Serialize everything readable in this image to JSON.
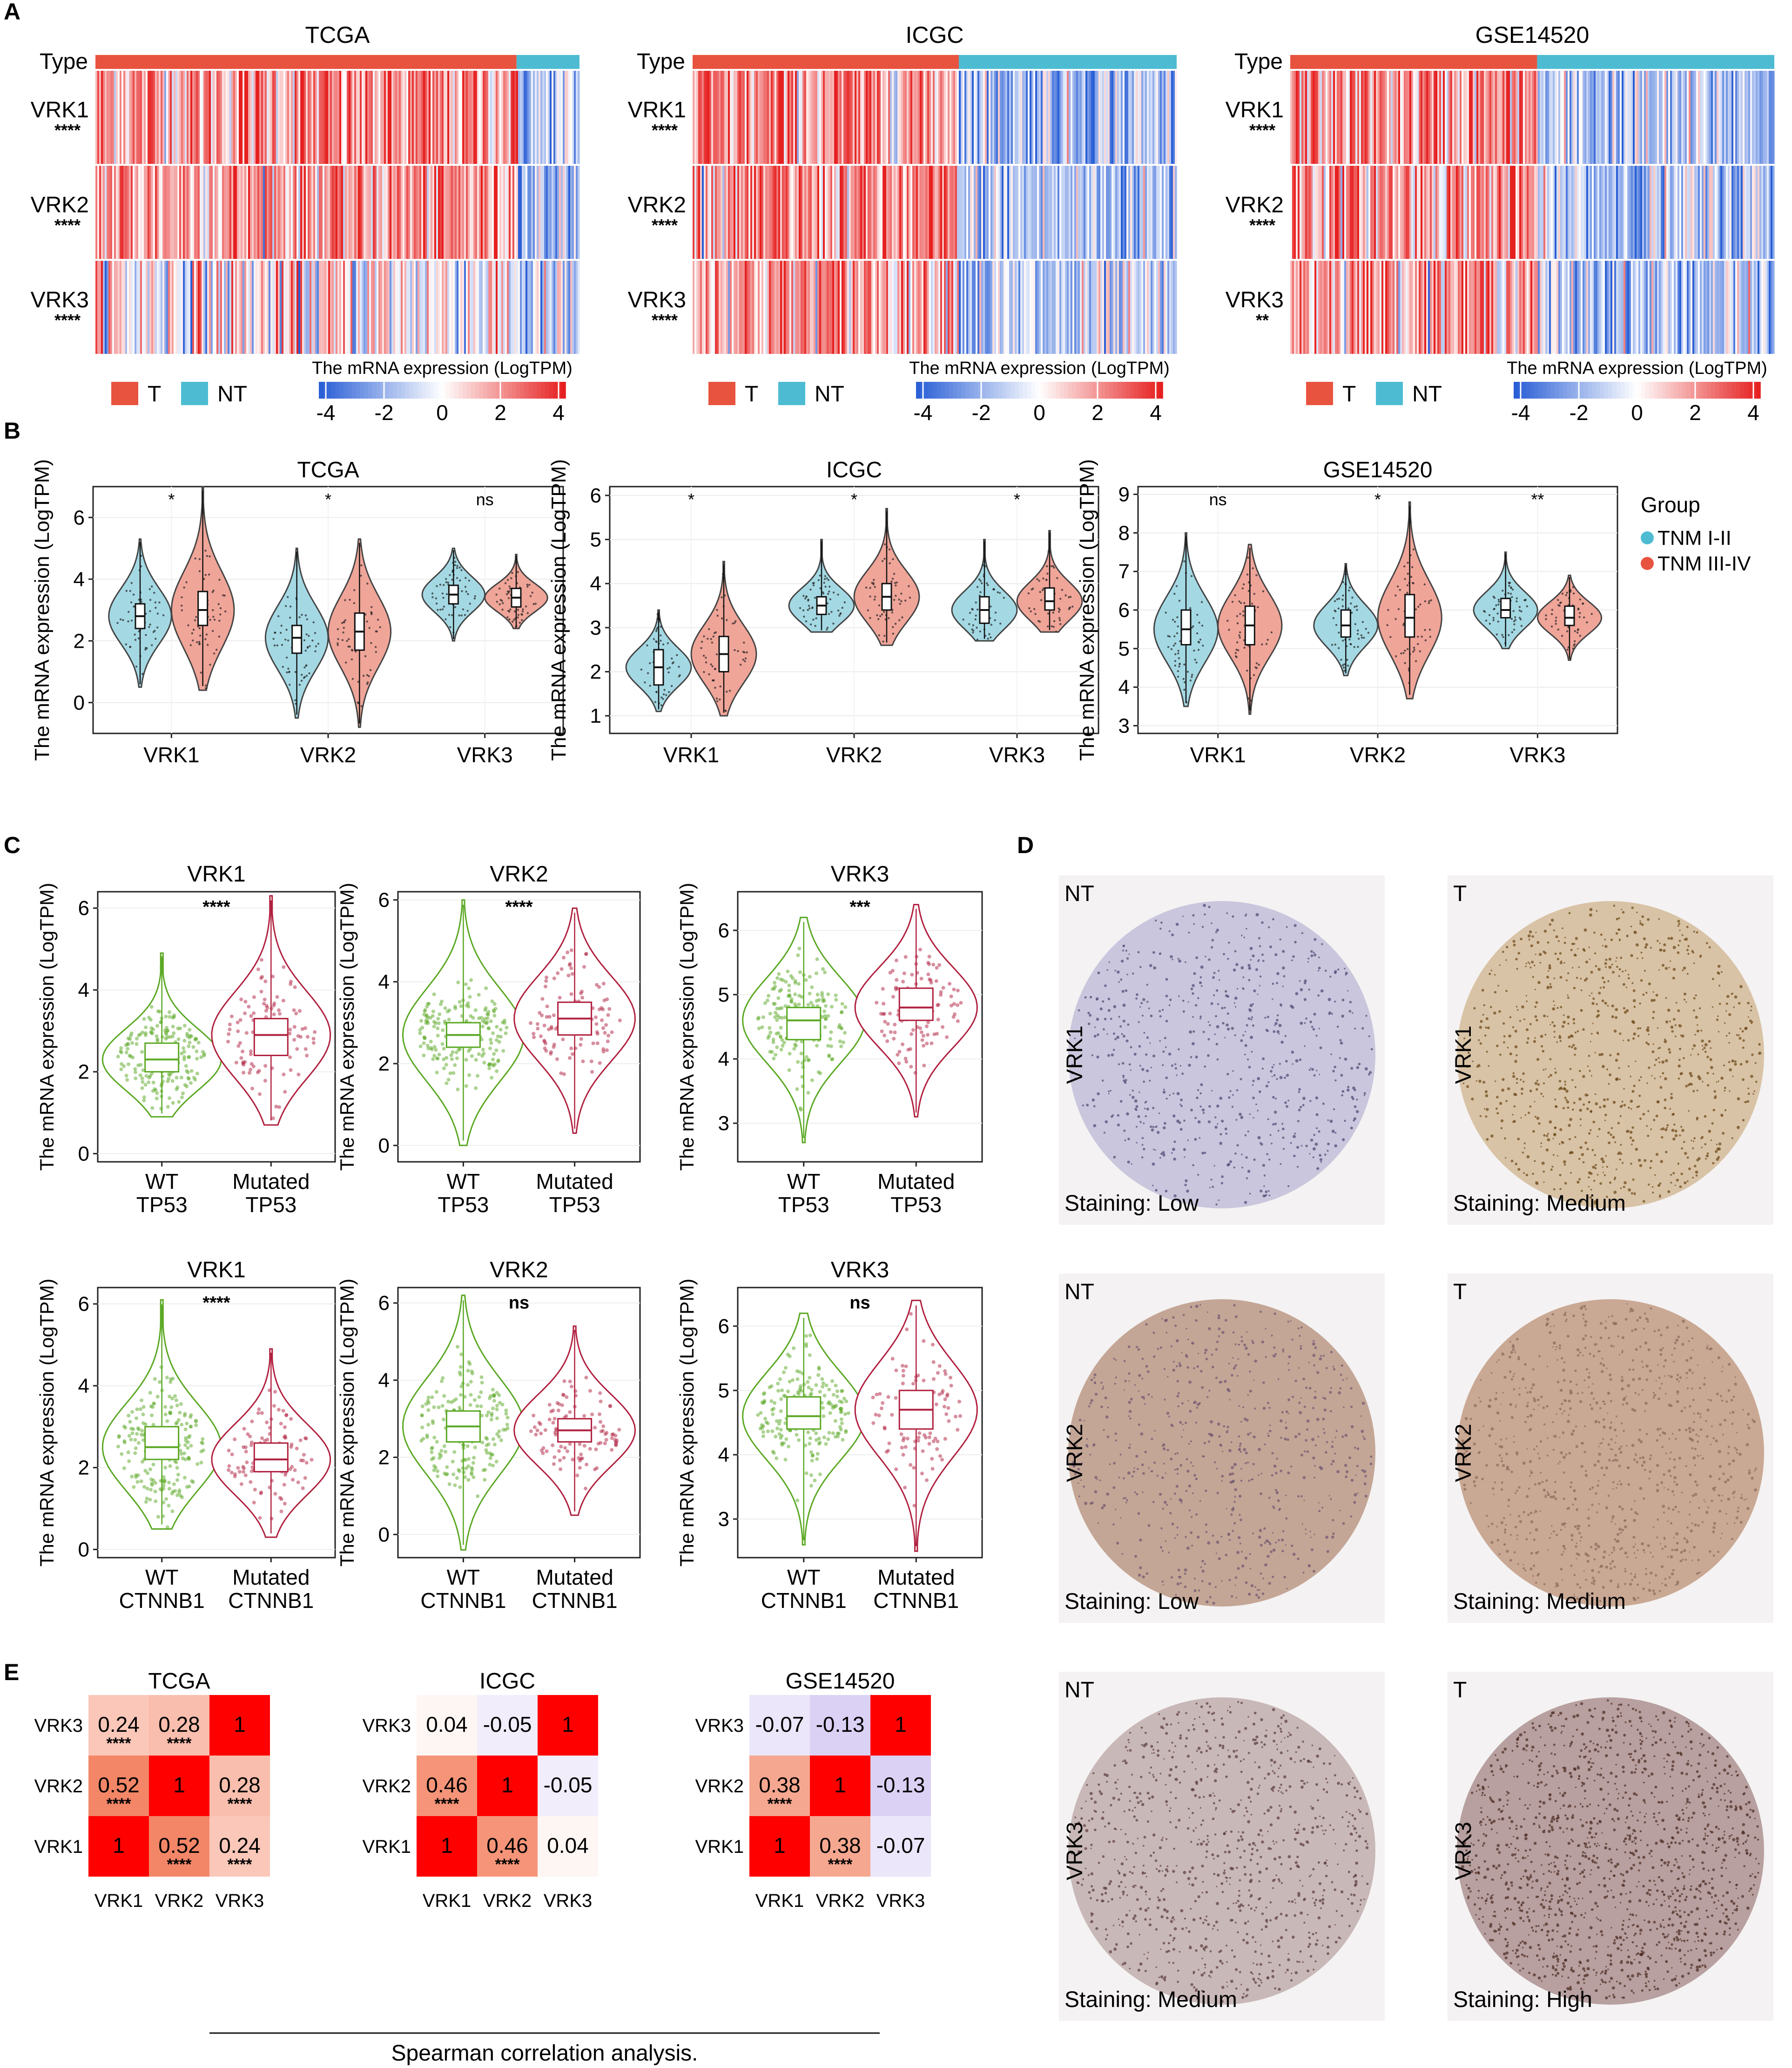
{
  "figure": {
    "panel_labels": [
      "A",
      "B",
      "C",
      "D",
      "E"
    ]
  },
  "panel_a": {
    "datasets": [
      {
        "title": "TCGA",
        "t_fraction": 0.87,
        "sig": [
          "****",
          "****",
          "****"
        ]
      },
      {
        "title": "ICGC",
        "t_fraction": 0.55,
        "sig": [
          "****",
          "****",
          "****"
        ]
      },
      {
        "title": "GSE14520",
        "t_fraction": 0.51,
        "sig": [
          "****",
          "****",
          "**"
        ]
      }
    ],
    "type_label": "Type",
    "genes": [
      "VRK1",
      "VRK2",
      "VRK3"
    ],
    "legend_t": "T",
    "legend_nt": "NT",
    "scale_title": "The mRNA expression (LogTPM)",
    "scale_ticks": [
      "-4",
      "-2",
      "0",
      "2",
      "4"
    ],
    "colors": {
      "t": "#e8533f",
      "nt": "#4dbcd3",
      "high": "#e62020",
      "low": "#2a5fd6"
    }
  },
  "chart_data": [
    {
      "type": "violin",
      "panel": "B",
      "title": "TCGA",
      "categories": [
        "VRK1",
        "VRK2",
        "VRK3"
      ],
      "groups": [
        "TNM I-II",
        "TNM III-IV"
      ],
      "ylabel": "The mRNA expression (LogTPM)",
      "ylim": [
        -1,
        7
      ],
      "yticks": [
        "0",
        "2",
        "4",
        "6"
      ],
      "medians": [
        [
          2.8,
          3.0
        ],
        [
          2.1,
          2.3
        ],
        [
          3.5,
          3.4
        ]
      ],
      "q1": [
        [
          2.4,
          2.5
        ],
        [
          1.6,
          1.7
        ],
        [
          3.2,
          3.1
        ]
      ],
      "q3": [
        [
          3.2,
          3.6
        ],
        [
          2.5,
          2.9
        ],
        [
          3.8,
          3.7
        ]
      ],
      "ranges": [
        [
          0.5,
          5.3
        ],
        [
          0.4,
          7.0
        ],
        [
          -0.5,
          5.0
        ],
        [
          -0.8,
          5.3
        ],
        [
          2.0,
          5.0
        ],
        [
          2.4,
          4.8
        ]
      ],
      "significance": [
        "*",
        "*",
        "ns"
      ]
    },
    {
      "type": "violin",
      "panel": "B",
      "title": "ICGC",
      "categories": [
        "VRK1",
        "VRK2",
        "VRK3"
      ],
      "groups": [
        "TNM I-II",
        "TNM III-IV"
      ],
      "ylabel": "The mRNA expression (LogTPM)",
      "ylim": [
        0.6,
        6.2
      ],
      "yticks": [
        "1",
        "2",
        "3",
        "4",
        "5",
        "6"
      ],
      "medians": [
        [
          2.1,
          2.4
        ],
        [
          3.5,
          3.7
        ],
        [
          3.4,
          3.6
        ]
      ],
      "q1": [
        [
          1.7,
          2.0
        ],
        [
          3.3,
          3.4
        ],
        [
          3.1,
          3.4
        ]
      ],
      "q3": [
        [
          2.5,
          2.8
        ],
        [
          3.7,
          4.0
        ],
        [
          3.7,
          3.9
        ]
      ],
      "ranges": [
        [
          1.1,
          3.4
        ],
        [
          1.0,
          4.5
        ],
        [
          2.9,
          5.0
        ],
        [
          2.6,
          5.7
        ],
        [
          2.7,
          5.0
        ],
        [
          2.9,
          5.2
        ]
      ],
      "significance": [
        "*",
        "*",
        "*"
      ]
    },
    {
      "type": "violin",
      "panel": "B",
      "title": "GSE14520",
      "categories": [
        "VRK1",
        "VRK2",
        "VRK3"
      ],
      "groups": [
        "TNM I-II",
        "TNM III-IV"
      ],
      "ylabel": "The mRNA expression (LogTPM)",
      "ylim": [
        2.8,
        9.2
      ],
      "yticks": [
        "3",
        "4",
        "5",
        "6",
        "7",
        "8",
        "9"
      ],
      "medians": [
        [
          5.5,
          5.6
        ],
        [
          5.6,
          5.8
        ],
        [
          6.0,
          5.8
        ]
      ],
      "q1": [
        [
          5.1,
          5.1
        ],
        [
          5.3,
          5.3
        ],
        [
          5.8,
          5.6
        ]
      ],
      "q3": [
        [
          6.0,
          6.1
        ],
        [
          6.0,
          6.4
        ],
        [
          6.3,
          6.1
        ]
      ],
      "ranges": [
        [
          3.5,
          8.0
        ],
        [
          3.3,
          7.7
        ],
        [
          4.3,
          7.2
        ],
        [
          3.7,
          8.8
        ],
        [
          5.0,
          7.5
        ],
        [
          4.7,
          6.9
        ]
      ],
      "significance": [
        "ns",
        "*",
        "**"
      ],
      "legend_title": "Group",
      "legend_colors": [
        "#4dbcd3",
        "#e8533f"
      ],
      "legend_fills": [
        "#a4d9e4",
        "#f0a599"
      ]
    },
    {
      "type": "violin",
      "panel": "C",
      "title": "VRK1",
      "groups": [
        "WT\nTP53",
        "Mutated\nTP53"
      ],
      "ylabel": "The mRNA expression (LogTPM)",
      "ylim": [
        -0.2,
        6.4
      ],
      "yticks": [
        "0",
        "2",
        "4",
        "6"
      ],
      "medians": [
        2.3,
        2.9
      ],
      "q1": [
        2.0,
        2.4
      ],
      "q3": [
        2.7,
        3.3
      ],
      "ranges": [
        [
          0.9,
          4.9
        ],
        [
          0.7,
          6.3
        ]
      ],
      "significance": "****"
    },
    {
      "type": "violin",
      "panel": "C",
      "title": "VRK2",
      "groups": [
        "WT\nTP53",
        "Mutated\nTP53"
      ],
      "ylabel": "The mRNA expression (LogTPM)",
      "ylim": [
        -0.4,
        6.2
      ],
      "yticks": [
        "0",
        "2",
        "4",
        "6"
      ],
      "medians": [
        2.7,
        3.1
      ],
      "q1": [
        2.4,
        2.7
      ],
      "q3": [
        3.0,
        3.5
      ],
      "ranges": [
        [
          0.0,
          6.0
        ],
        [
          0.3,
          5.8
        ]
      ],
      "significance": "****"
    },
    {
      "type": "violin",
      "panel": "C",
      "title": "VRK3",
      "groups": [
        "WT\nTP53",
        "Mutated\nTP53"
      ],
      "ylabel": "The mRNA expression (LogTPM)",
      "ylim": [
        2.4,
        6.6
      ],
      "yticks": [
        "3",
        "4",
        "5",
        "6"
      ],
      "medians": [
        4.6,
        4.8
      ],
      "q1": [
        4.3,
        4.6
      ],
      "q3": [
        4.8,
        5.1
      ],
      "ranges": [
        [
          2.7,
          6.2
        ],
        [
          3.1,
          6.4
        ]
      ],
      "significance": "***"
    },
    {
      "type": "violin",
      "panel": "C",
      "title": "VRK1",
      "groups": [
        "WT\nCTNNB1",
        "Mutated\nCTNNB1"
      ],
      "ylabel": "The mRNA expression (LogTPM)",
      "ylim": [
        -0.2,
        6.4
      ],
      "yticks": [
        "0",
        "2",
        "4",
        "6"
      ],
      "medians": [
        2.5,
        2.2
      ],
      "q1": [
        2.2,
        1.9
      ],
      "q3": [
        3.0,
        2.6
      ],
      "ranges": [
        [
          0.5,
          6.1
        ],
        [
          0.3,
          4.9
        ]
      ],
      "significance": "****"
    },
    {
      "type": "violin",
      "panel": "C",
      "title": "VRK2",
      "groups": [
        "WT\nCTNNB1",
        "Mutated\nCTNNB1"
      ],
      "ylabel": "The mRNA expression (LogTPM)",
      "ylim": [
        -0.6,
        6.4
      ],
      "yticks": [
        "0",
        "2",
        "4",
        "6"
      ],
      "medians": [
        2.8,
        2.7
      ],
      "q1": [
        2.4,
        2.4
      ],
      "q3": [
        3.2,
        3.0
      ],
      "ranges": [
        [
          -0.4,
          6.2
        ],
        [
          0.5,
          5.4
        ]
      ],
      "significance": "ns"
    },
    {
      "type": "violin",
      "panel": "C",
      "title": "VRK3",
      "groups": [
        "WT\nCTNNB1",
        "Mutated\nCTNNB1"
      ],
      "ylabel": "The mRNA expression (LogTPM)",
      "ylim": [
        2.4,
        6.6
      ],
      "yticks": [
        "3",
        "4",
        "5",
        "6"
      ],
      "medians": [
        4.6,
        4.7
      ],
      "q1": [
        4.4,
        4.4
      ],
      "q3": [
        4.9,
        5.0
      ],
      "ranges": [
        [
          2.6,
          6.2
        ],
        [
          2.5,
          6.4
        ]
      ],
      "significance": "ns"
    },
    {
      "type": "heatmap",
      "panel": "E",
      "title": "TCGA",
      "rows": [
        "VRK3",
        "VRK2",
        "VRK1"
      ],
      "cols": [
        "VRK1",
        "VRK2",
        "VRK3"
      ],
      "values": [
        [
          0.24,
          0.28,
          1
        ],
        [
          0.52,
          1,
          0.28
        ],
        [
          1,
          0.52,
          0.24
        ]
      ],
      "labels": [
        [
          "0.24",
          "0.28",
          "1"
        ],
        [
          "0.52",
          "1",
          "0.28"
        ],
        [
          "1",
          "0.52",
          "0.24"
        ]
      ],
      "stars": [
        [
          "****",
          "****",
          ""
        ],
        [
          "****",
          "",
          "****"
        ],
        [
          "",
          "****",
          "****"
        ]
      ]
    },
    {
      "type": "heatmap",
      "panel": "E",
      "title": "ICGC",
      "rows": [
        "VRK3",
        "VRK2",
        "VRK1"
      ],
      "cols": [
        "VRK1",
        "VRK2",
        "VRK3"
      ],
      "values": [
        [
          0.04,
          -0.05,
          1
        ],
        [
          0.46,
          1,
          -0.05
        ],
        [
          1,
          0.46,
          0.04
        ]
      ],
      "labels": [
        [
          "0.04",
          "-0.05",
          "1"
        ],
        [
          "0.46",
          "1",
          "-0.05"
        ],
        [
          "1",
          "0.46",
          "0.04"
        ]
      ],
      "stars": [
        [
          "",
          "",
          ""
        ],
        [
          "****",
          "",
          ""
        ],
        [
          "",
          "****",
          ""
        ]
      ]
    },
    {
      "type": "heatmap",
      "panel": "E",
      "title": "GSE14520",
      "rows": [
        "VRK3",
        "VRK2",
        "VRK1"
      ],
      "cols": [
        "VRK1",
        "VRK2",
        "VRK3"
      ],
      "values": [
        [
          -0.07,
          -0.13,
          1
        ],
        [
          0.38,
          1,
          -0.13
        ],
        [
          1,
          0.38,
          -0.07
        ]
      ],
      "labels": [
        [
          "-0.07",
          "-0.13",
          "1"
        ],
        [
          "0.38",
          "1",
          "-0.13"
        ],
        [
          "1",
          "0.38",
          "-0.07"
        ]
      ],
      "stars": [
        [
          "",
          "",
          ""
        ],
        [
          "****",
          "",
          ""
        ],
        [
          "",
          "****",
          ""
        ]
      ]
    }
  ],
  "panel_e_caption": "Spearman correlation analysis.",
  "panel_d": {
    "images": [
      {
        "tissue": "NT",
        "gene": "VRK1",
        "staining": "Staining: Low",
        "base": "#c9c6dd",
        "dot": "#4a4670"
      },
      {
        "tissue": "T",
        "gene": "VRK1",
        "staining": "Staining: Medium",
        "base": "#d9c3a6",
        "dot": "#6a4616"
      },
      {
        "tissue": "NT",
        "gene": "VRK2",
        "staining": "Staining: Low",
        "base": "#c4a696",
        "dot": "#6f5670"
      },
      {
        "tissue": "T",
        "gene": "VRK2",
        "staining": "Staining: Medium",
        "base": "#c9a894",
        "dot": "#8a6a5a"
      },
      {
        "tissue": "NT",
        "gene": "VRK3",
        "staining": "Staining: Medium",
        "base": "#c9b8b8",
        "dot": "#5a3a3a"
      },
      {
        "tissue": "T",
        "gene": "VRK3",
        "staining": "Staining: High",
        "base": "#b8a0a0",
        "dot": "#4a2a20"
      }
    ]
  }
}
